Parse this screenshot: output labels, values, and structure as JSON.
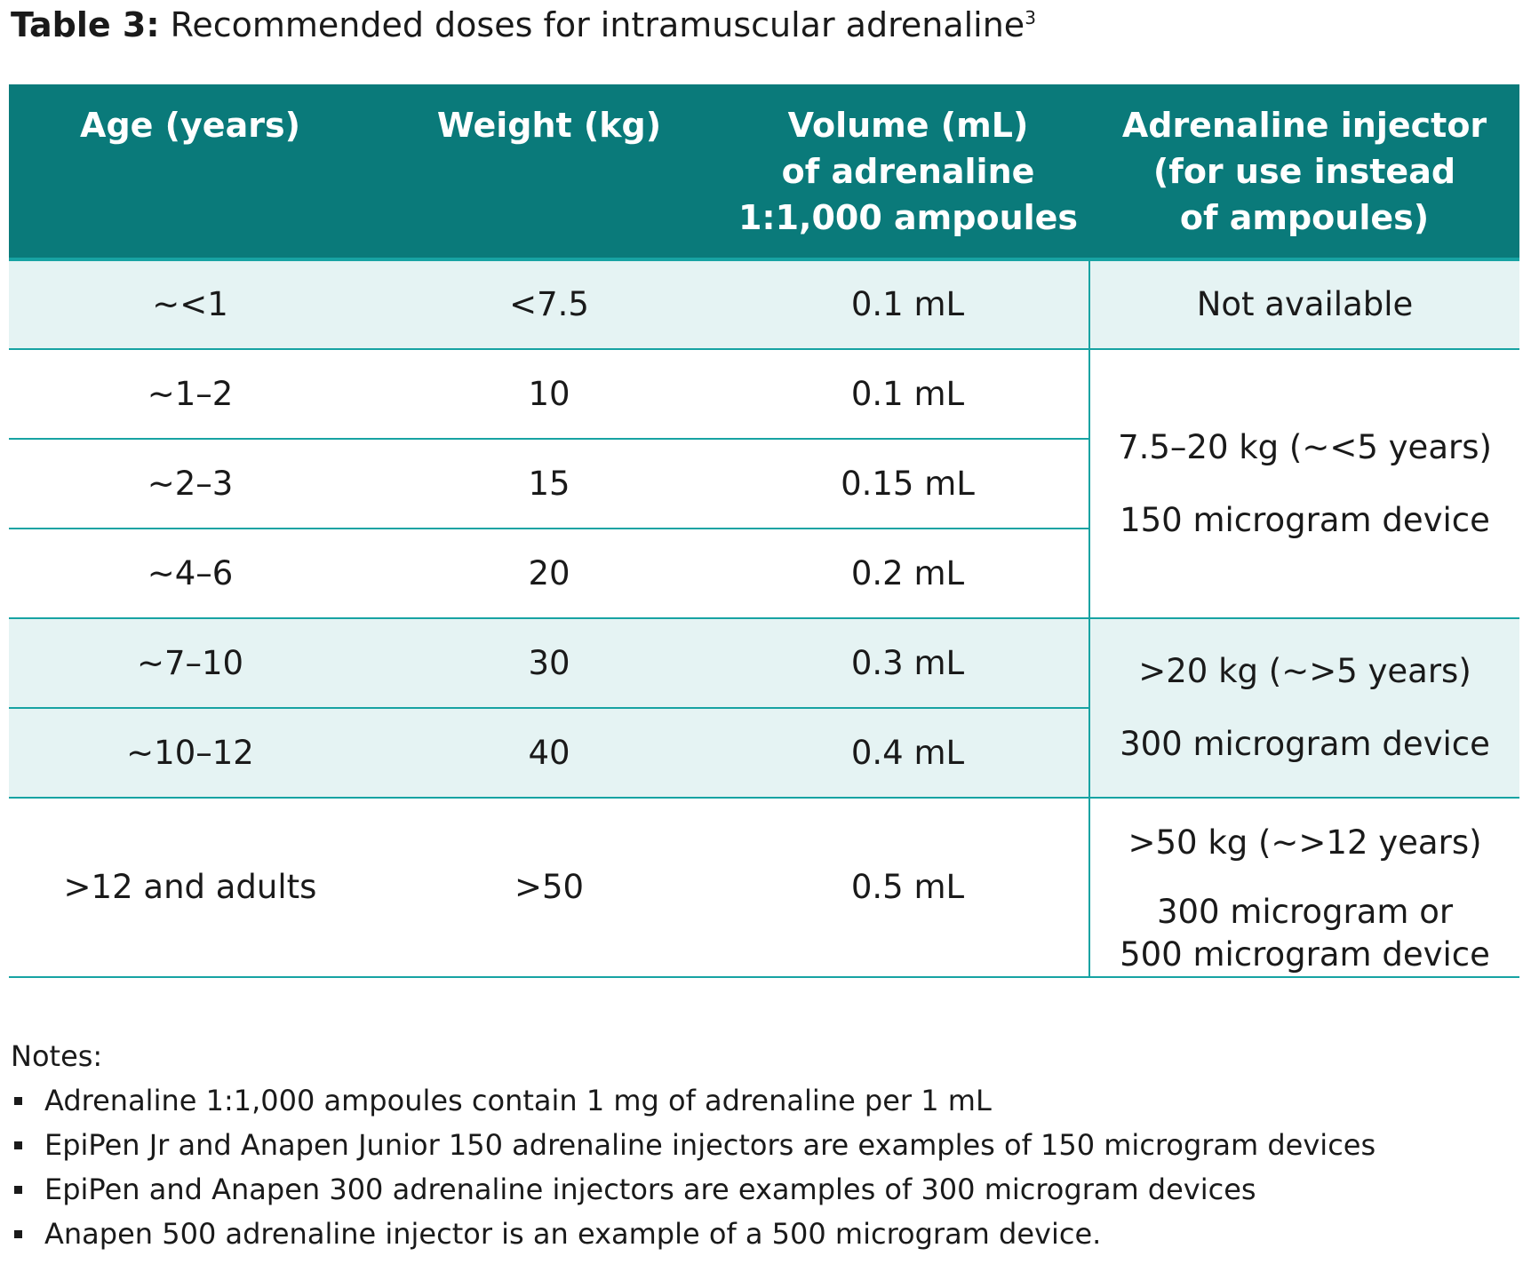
{
  "title": {
    "label": "Table 3:",
    "text": "Recommended doses for intramuscular adrenaline",
    "superscript": "3"
  },
  "table": {
    "headers": [
      [
        "Age (years)"
      ],
      [
        "Weight (kg)"
      ],
      [
        "Volume (mL)",
        "of adrenaline",
        "1:1,000 ampoules"
      ],
      [
        "Adrenaline injector",
        "(for use instead",
        "of ampoules)"
      ]
    ],
    "rows": [
      {
        "age": "~<1",
        "weight": "<7.5",
        "volume": "0.1 mL"
      },
      {
        "age": "~1–2",
        "weight": "10",
        "volume": "0.1 mL"
      },
      {
        "age": "~2–3",
        "weight": "15",
        "volume": "0.15 mL"
      },
      {
        "age": "~4–6",
        "weight": "20",
        "volume": "0.2 mL"
      },
      {
        "age": "~7–10",
        "weight": "30",
        "volume": "0.3 mL"
      },
      {
        "age": "~10–12",
        "weight": "40",
        "volume": "0.4 mL"
      },
      {
        "age": ">12 and adults",
        "weight": ">50",
        "volume": "0.5 mL"
      }
    ],
    "injectors": [
      {
        "line1": "Not available"
      },
      {
        "line1": "7.5–20 kg (~<5 years)",
        "line2": "150 microgram device"
      },
      {
        "line1": ">20 kg (~>5 years)",
        "line2": "300 microgram device"
      },
      {
        "line1": ">50 kg (~>12 years)",
        "line2a": "300 microgram or",
        "line2b": "500 microgram device"
      }
    ]
  },
  "notes": {
    "title": "Notes:",
    "items": [
      "Adrenaline 1:1,000 ampoules contain 1 mg of adrenaline per 1 mL",
      "EpiPen Jr and Anapen Junior 150 adrenaline injectors are examples of 150 microgram devices",
      "EpiPen and Anapen 300 adrenaline injectors are examples of 300 microgram devices",
      "Anapen 500 adrenaline injector is an example of a 500 microgram device."
    ]
  },
  "colors": {
    "header_bg": "#0a7a7a",
    "rule": "#17a3a3",
    "shade": "#e5f3f3"
  }
}
